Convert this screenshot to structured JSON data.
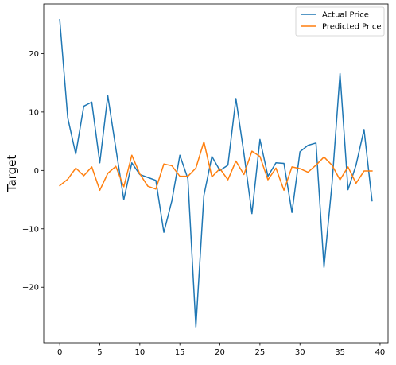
{
  "chart_data": {
    "type": "line",
    "title": "",
    "xlabel": "",
    "ylabel": "Target",
    "xlim": [
      -2,
      41
    ],
    "ylim": [
      -29.5,
      28.5
    ],
    "xticks": [
      0,
      5,
      10,
      15,
      20,
      25,
      30,
      35,
      40
    ],
    "yticks": [
      20,
      10,
      0,
      -10,
      -20
    ],
    "ytick_labels": [
      "20",
      "10",
      "0",
      "−10",
      "−20"
    ],
    "grid": false,
    "legend_position": "top-right",
    "x": [
      0,
      1,
      2,
      3,
      4,
      5,
      6,
      7,
      8,
      9,
      10,
      11,
      12,
      13,
      14,
      15,
      16,
      17,
      18,
      19,
      20,
      21,
      22,
      23,
      24,
      25,
      26,
      27,
      28,
      29,
      30,
      31,
      32,
      33,
      34,
      35,
      36,
      37,
      38,
      39
    ],
    "series": [
      {
        "name": "Actual Price",
        "color": "#1f77b4",
        "values": [
          25.8,
          9.0,
          2.8,
          11.0,
          11.7,
          1.3,
          12.8,
          3.8,
          -5.0,
          1.3,
          -0.7,
          -1.2,
          -1.7,
          -10.6,
          -5.2,
          2.6,
          -1.4,
          -26.8,
          -4.3,
          2.4,
          0.0,
          0.9,
          12.3,
          2.9,
          -7.4,
          5.3,
          -1.0,
          1.3,
          1.2,
          -7.2,
          3.2,
          4.3,
          4.7,
          -16.6,
          -2.3,
          16.6,
          -3.3,
          0.9,
          7.0,
          -5.2
        ]
      },
      {
        "name": "Predicted Price",
        "color": "#ff7f0e",
        "values": [
          -2.6,
          -1.5,
          0.4,
          -0.9,
          0.6,
          -3.4,
          -0.5,
          0.7,
          -2.8,
          2.6,
          -0.6,
          -2.7,
          -3.2,
          1.1,
          0.8,
          -1.0,
          -1.0,
          0.4,
          4.9,
          -1.1,
          0.3,
          -1.6,
          1.6,
          -0.7,
          3.3,
          2.4,
          -1.6,
          0.4,
          -3.4,
          0.6,
          0.3,
          -0.3,
          0.9,
          2.3,
          0.9,
          -1.6,
          0.6,
          -2.2,
          -0.1,
          -0.1
        ]
      }
    ]
  }
}
